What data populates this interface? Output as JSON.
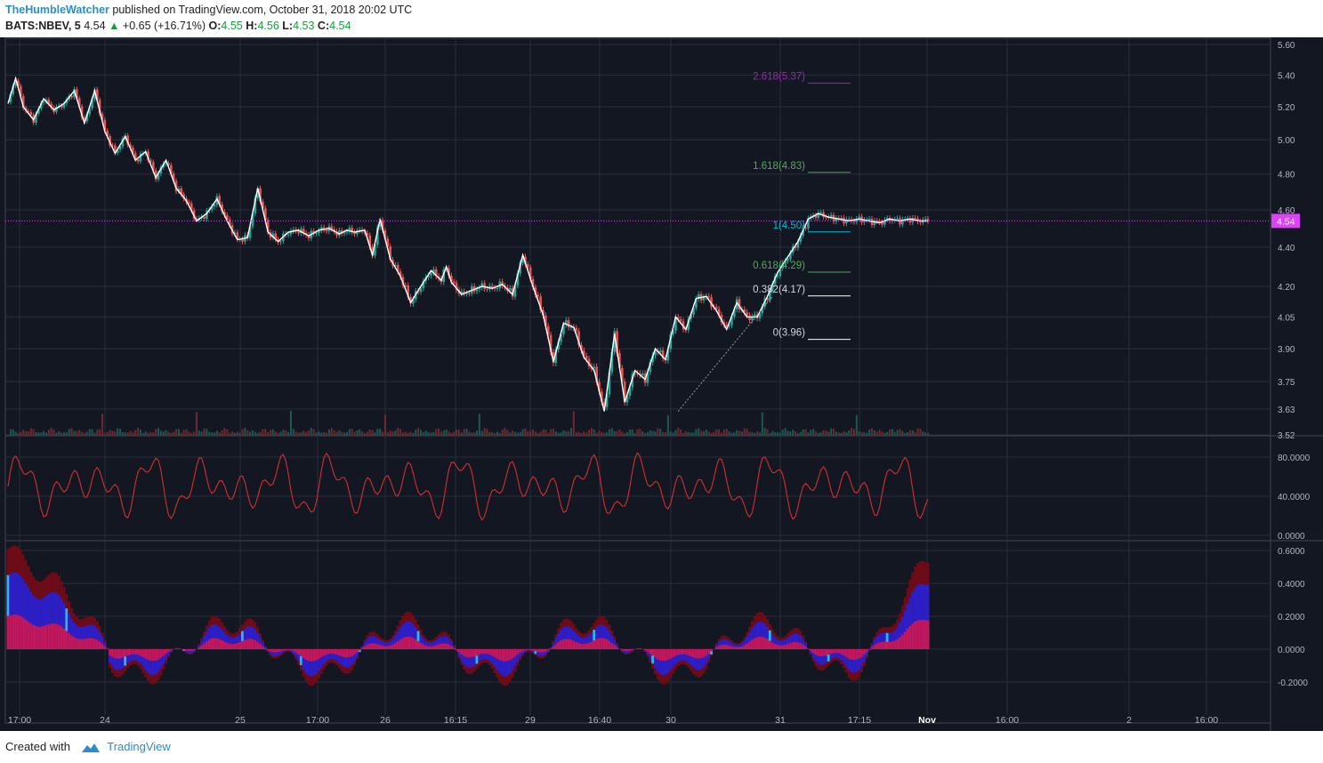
{
  "header": {
    "author": "TheHumbleWatcher",
    "published_text": "published on TradingView.com, October 31, 2018 20:02 UTC"
  },
  "symbol_line": {
    "symbol": "BATS:NBEV, 5",
    "last": "4.54",
    "change": "+0.65 (+16.71%)",
    "o_label": "O:",
    "o_value": "4.55",
    "h_label": "H:",
    "h_value": "4.56",
    "l_label": "L:",
    "l_value": "4.53",
    "c_label": "C:",
    "c_value": "4.54"
  },
  "footer": {
    "created_with": "Created with",
    "brand": "TradingView"
  },
  "colors": {
    "background": "#131722",
    "grid": "#2a2e39",
    "up": "#26a69a",
    "down": "#ef5350",
    "price_line": "#ffffff",
    "current_price": "#e040fb",
    "oscillator": "#d32f2f",
    "histogram_dark": "#6d0c16",
    "histogram_blue": "#2a1fc9",
    "histogram_red": "#c2185b",
    "histogram_cyan": "#29b6f6"
  },
  "chart_data": [
    {
      "type": "line",
      "panel": "price",
      "x_tick_labels": [
        "17:00",
        "24",
        "25",
        "17:00",
        "26",
        "16:15",
        "29",
        "16:40",
        "30",
        "31",
        "17:15",
        "Nov",
        "16:00",
        "2",
        "16:00"
      ],
      "y_ticks": [
        "5.60",
        "5.40",
        "5.20",
        "5.00",
        "4.80",
        "4.60",
        "4.40",
        "4.20",
        "4.05",
        "3.90",
        "3.75",
        "3.63",
        "3.52"
      ],
      "ylim": [
        3.52,
        5.6
      ],
      "y_scale": "log",
      "series": [
        {
          "x": [
            0,
            3,
            6,
            10,
            14,
            18,
            22,
            26,
            30,
            34,
            38,
            42,
            46,
            50,
            54,
            58,
            62,
            66,
            70,
            74,
            78,
            82,
            86,
            90,
            94,
            98,
            102,
            106,
            110,
            114,
            118,
            122,
            126,
            130,
            133,
            136,
            140,
            143,
            146,
            150,
            154,
            158,
            162,
            166,
            170,
            172,
            174,
            178,
            182,
            186,
            190,
            194,
            198,
            202,
            206,
            210,
            214,
            218,
            222,
            226,
            230,
            234,
            238,
            242,
            246,
            250,
            254,
            258,
            262,
            266,
            270,
            274,
            278,
            282,
            286,
            290,
            294,
            298,
            302,
            306,
            310,
            314,
            318,
            322,
            326,
            330,
            334,
            338,
            342,
            346,
            350,
            354,
            358,
            361
          ],
          "values": [
            5.22,
            5.38,
            5.2,
            5.12,
            5.25,
            5.18,
            5.22,
            5.3,
            5.1,
            5.3,
            5.05,
            4.92,
            5.02,
            4.88,
            4.93,
            4.78,
            4.88,
            4.72,
            4.65,
            4.54,
            4.58,
            4.66,
            4.54,
            4.44,
            4.45,
            4.72,
            4.48,
            4.43,
            4.48,
            4.49,
            4.46,
            4.49,
            4.5,
            4.47,
            4.49,
            4.48,
            4.49,
            4.36,
            4.55,
            4.34,
            4.25,
            4.12,
            4.2,
            4.28,
            4.23,
            4.3,
            4.22,
            4.16,
            4.18,
            4.2,
            4.19,
            4.21,
            4.16,
            4.36,
            4.2,
            4.06,
            3.84,
            4.02,
            4.0,
            3.86,
            3.8,
            3.62,
            3.97,
            3.66,
            3.8,
            3.76,
            3.9,
            3.85,
            4.05,
            3.99,
            4.14,
            4.15,
            4.08,
            3.99,
            4.12,
            4.05,
            4.05,
            4.15,
            4.27,
            4.35,
            4.43,
            4.55,
            4.58,
            4.56,
            4.55,
            4.54,
            4.55,
            4.54,
            4.53,
            4.55,
            4.54,
            4.55,
            4.54,
            4.54
          ]
        }
      ],
      "last_price_label": "4.54",
      "annotations": [
        {
          "text": "2.618(5.37)",
          "value": 5.37
        },
        {
          "text": "1.618(4.83)",
          "value": 4.83
        },
        {
          "text": "1(4.50)",
          "value": 4.5
        },
        {
          "text": "0.618(4.29)",
          "value": 4.29
        },
        {
          "text": "0.382(4.17)",
          "value": 4.17
        },
        {
          "text": "0(3.96)",
          "value": 3.96
        }
      ]
    },
    {
      "type": "line",
      "panel": "oscillator",
      "y_ticks": [
        "80.0000",
        "40.0000",
        "0.0000"
      ],
      "ylim": [
        0,
        100
      ]
    },
    {
      "type": "bar",
      "panel": "histogram",
      "y_ticks": [
        "0.6000",
        "0.4000",
        "0.2000",
        "0.0000",
        "-0.2000"
      ],
      "ylim": [
        -0.3,
        0.6
      ]
    }
  ]
}
